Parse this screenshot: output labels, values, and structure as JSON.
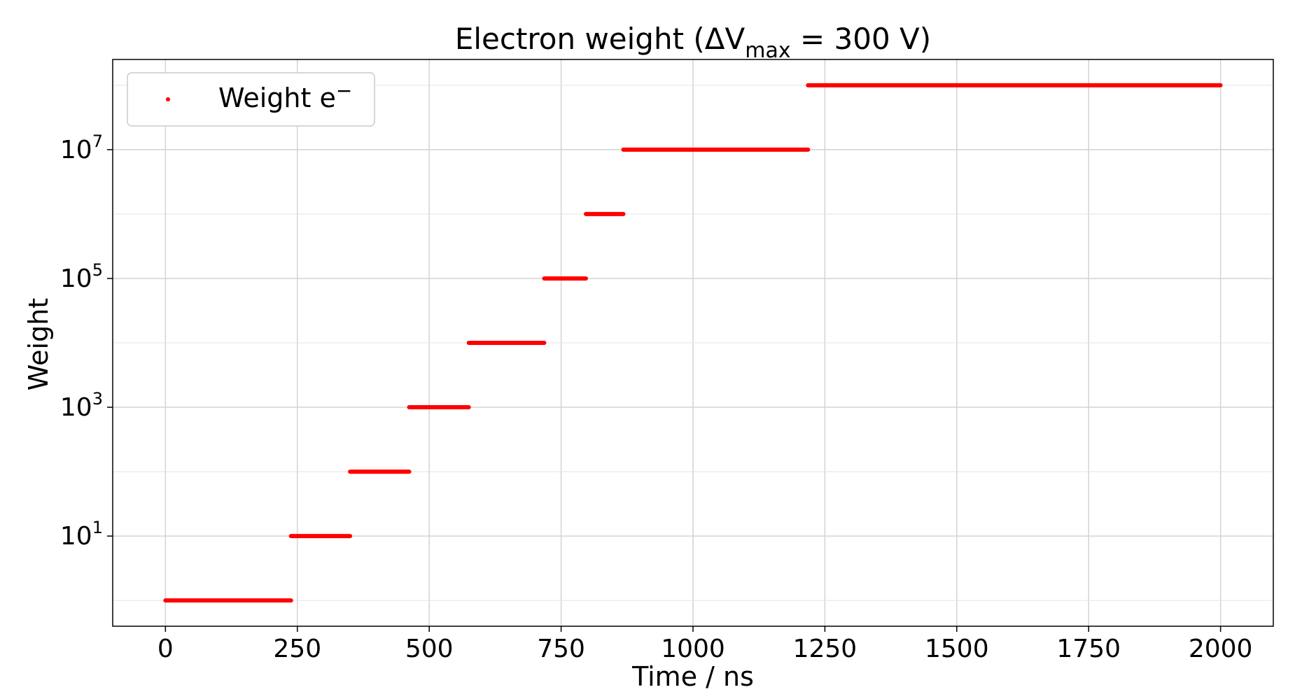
{
  "chart_data": {
    "type": "scatter",
    "title": "Electron weight (ΔV",
    "title_sub": "max",
    "title_tail": " = 300 V)",
    "xlabel": "Time / ns",
    "ylabel": "Weight",
    "xlim": [
      -100,
      2100
    ],
    "ylim_log10": [
      -0.4,
      8.4
    ],
    "y_scale": "log",
    "grid": true,
    "legend_position": "top-left",
    "x_ticks": [
      {
        "label": "0",
        "value": 0
      },
      {
        "label": "250",
        "value": 250
      },
      {
        "label": "500",
        "value": 500
      },
      {
        "label": "750",
        "value": 750
      },
      {
        "label": "1000",
        "value": 1000
      },
      {
        "label": "1250",
        "value": 1250
      },
      {
        "label": "1500",
        "value": 1500
      },
      {
        "label": "1750",
        "value": 1750
      },
      {
        "label": "2000",
        "value": 2000
      }
    ],
    "y_ticks": [
      {
        "base": "10",
        "exp": "1",
        "value": 10
      },
      {
        "base": "10",
        "exp": "3",
        "value": 1000
      },
      {
        "base": "10",
        "exp": "5",
        "value": 100000
      },
      {
        "base": "10",
        "exp": "7",
        "value": 10000000
      }
    ],
    "y_minor_gridlines": [
      1,
      100,
      10000,
      1000000,
      100000000
    ],
    "series": [
      {
        "name": "Weight e",
        "name_sup": "−",
        "color": "#ff0000",
        "segments": [
          {
            "x_start": 0,
            "x_end": 238,
            "y": 1
          },
          {
            "x_start": 238,
            "x_end": 350,
            "y": 10
          },
          {
            "x_start": 350,
            "x_end": 462,
            "y": 100
          },
          {
            "x_start": 462,
            "x_end": 575,
            "y": 1000
          },
          {
            "x_start": 575,
            "x_end": 718,
            "y": 10000
          },
          {
            "x_start": 718,
            "x_end": 797,
            "y": 100000
          },
          {
            "x_start": 797,
            "x_end": 868,
            "y": 1000000
          },
          {
            "x_start": 868,
            "x_end": 1218,
            "y": 10000000
          },
          {
            "x_start": 1218,
            "x_end": 2000,
            "y": 100000000
          }
        ]
      }
    ]
  }
}
